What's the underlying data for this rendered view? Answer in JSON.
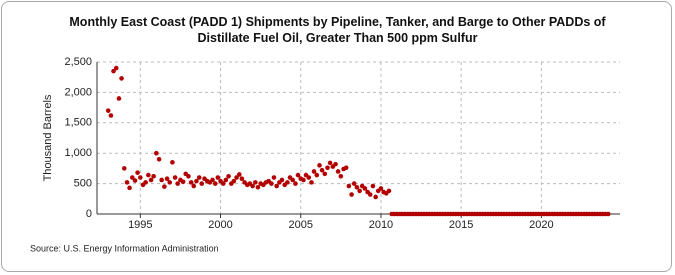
{
  "chart_data": {
    "type": "scatter",
    "title": "Monthly East Coast (PADD 1) Shipments by Pipeline, Tanker, and Barge to Other PADDs of Distillate Fuel Oil, Greater Than 500 ppm Sulfur",
    "y_label": "Thousand Barrels",
    "source": "Source: U.S. Energy Information Administration",
    "xlim": [
      1992.3,
      2024.9
    ],
    "xticks": [
      1995,
      2000,
      2005,
      2010,
      2015,
      2020
    ],
    "ylim": [
      0,
      2500
    ],
    "yticks": [
      0,
      500,
      {
        "value": 1000,
        "label": "1,000"
      },
      {
        "value": 1500,
        "label": "1,500"
      },
      {
        "value": 2000,
        "label": "2,000"
      },
      {
        "value": 2500,
        "label": "2,500"
      }
    ],
    "grid": true,
    "color": "#b30000",
    "x": [
      1993.0,
      1993.17,
      1993.33,
      1993.5,
      1993.67,
      1993.83,
      1994.0,
      1994.17,
      1994.33,
      1994.5,
      1994.67,
      1994.83,
      1995.0,
      1995.17,
      1995.33,
      1995.5,
      1995.67,
      1995.83,
      1996.0,
      1996.17,
      1996.33,
      1996.5,
      1996.67,
      1996.83,
      1997.0,
      1997.17,
      1997.33,
      1997.5,
      1997.67,
      1997.83,
      1998.0,
      1998.17,
      1998.33,
      1998.5,
      1998.67,
      1998.83,
      1999.0,
      1999.17,
      1999.33,
      1999.5,
      1999.67,
      1999.83,
      2000.0,
      2000.17,
      2000.33,
      2000.5,
      2000.67,
      2000.83,
      2001.0,
      2001.17,
      2001.33,
      2001.5,
      2001.67,
      2001.83,
      2002.0,
      2002.17,
      2002.33,
      2002.5,
      2002.67,
      2002.83,
      2003.0,
      2003.17,
      2003.33,
      2003.5,
      2003.67,
      2003.83,
      2004.0,
      2004.17,
      2004.33,
      2004.5,
      2004.67,
      2004.83,
      2005.0,
      2005.17,
      2005.33,
      2005.5,
      2005.67,
      2005.83,
      2006.0,
      2006.17,
      2006.33,
      2006.5,
      2006.67,
      2006.83,
      2007.0,
      2007.17,
      2007.33,
      2007.5,
      2007.67,
      2007.83,
      2008.0,
      2008.17,
      2008.33,
      2008.5,
      2008.67,
      2008.83,
      2009.0,
      2009.17,
      2009.33,
      2009.5,
      2009.67,
      2009.83,
      2010.0,
      2010.17,
      2010.33,
      2010.5,
      2010.67,
      2010.83,
      2011.0,
      2011.17,
      2011.33,
      2011.5,
      2011.67,
      2011.83,
      2012.0,
      2012.17,
      2012.33,
      2012.5,
      2012.67,
      2012.83,
      2013.0,
      2013.17,
      2013.33,
      2013.5,
      2013.67,
      2013.83,
      2014.0,
      2014.17,
      2014.33,
      2014.5,
      2014.67,
      2014.83,
      2015.0,
      2015.17,
      2015.33,
      2015.5,
      2015.67,
      2015.83,
      2016.0,
      2016.17,
      2016.33,
      2016.5,
      2016.67,
      2016.83,
      2017.0,
      2017.17,
      2017.33,
      2017.5,
      2017.67,
      2017.83,
      2018.0,
      2018.17,
      2018.33,
      2018.5,
      2018.67,
      2018.83,
      2019.0,
      2019.17,
      2019.33,
      2019.5,
      2019.67,
      2019.83,
      2020.0,
      2020.17,
      2020.33,
      2020.5,
      2020.67,
      2020.83,
      2021.0,
      2021.17,
      2021.33,
      2021.5,
      2021.67,
      2021.83,
      2022.0,
      2022.17,
      2022.33,
      2022.5,
      2022.67,
      2022.83,
      2023.0,
      2023.17,
      2023.33,
      2023.5,
      2023.67,
      2023.83,
      2024.0,
      2024.17
    ],
    "values": [
      1700,
      1620,
      2350,
      2400,
      1900,
      2230,
      750,
      520,
      430,
      600,
      550,
      680,
      600,
      480,
      520,
      640,
      560,
      620,
      1000,
      900,
      560,
      450,
      580,
      520,
      850,
      600,
      500,
      560,
      530,
      660,
      620,
      520,
      460,
      540,
      600,
      500,
      580,
      540,
      520,
      560,
      500,
      600,
      540,
      500,
      560,
      620,
      500,
      540,
      600,
      650,
      580,
      520,
      480,
      500,
      460,
      520,
      440,
      500,
      480,
      520,
      540,
      500,
      600,
      460,
      520,
      560,
      480,
      520,
      600,
      560,
      500,
      640,
      580,
      560,
      640,
      600,
      520,
      700,
      640,
      800,
      720,
      660,
      760,
      840,
      780,
      820,
      700,
      620,
      740,
      760,
      460,
      320,
      500,
      440,
      380,
      460,
      420,
      360,
      320,
      460,
      280,
      380,
      420,
      360,
      340,
      380,
      0,
      0,
      0,
      0,
      0,
      0,
      0,
      0,
      0,
      0,
      0,
      0,
      0,
      0,
      0,
      0,
      0,
      0,
      0,
      0,
      0,
      0,
      0,
      0,
      0,
      0,
      0,
      0,
      0,
      0,
      0,
      0,
      0,
      0,
      0,
      0,
      0,
      0,
      0,
      0,
      0,
      0,
      0,
      0,
      0,
      0,
      0,
      0,
      0,
      0,
      0,
      0,
      0,
      0,
      0,
      0,
      0,
      0,
      0,
      0,
      0,
      0,
      0,
      0,
      0,
      0,
      0,
      0,
      0,
      0,
      0,
      0,
      0,
      0,
      0,
      0,
      0,
      0,
      0,
      0,
      0,
      0
    ]
  }
}
